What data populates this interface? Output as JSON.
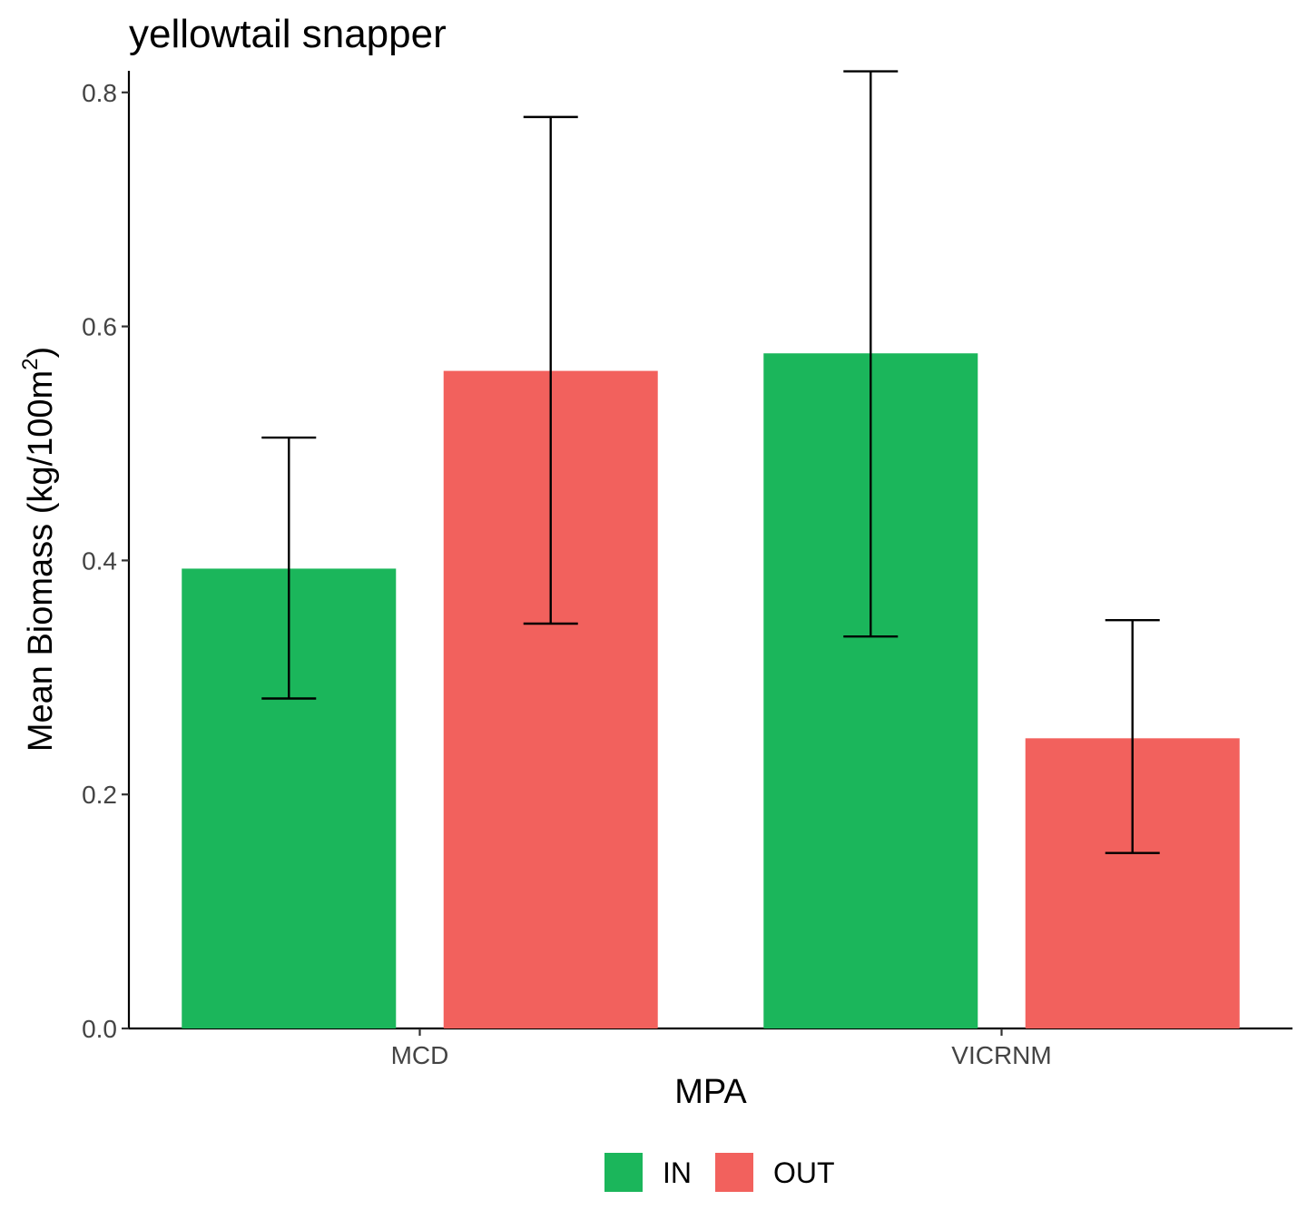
{
  "chart_data": {
    "type": "bar",
    "title": "yellowtail snapper",
    "xlabel": "MPA",
    "ylabel_main": "Mean Biomass (kg/100m",
    "ylabel_sup": "2",
    "ylabel_end": ")",
    "categories": [
      "MCD",
      "VICRNM"
    ],
    "series": [
      {
        "name": "IN",
        "color": "#1BB65B",
        "values": [
          0.393,
          0.577
        ],
        "error_low": [
          0.282,
          0.335
        ],
        "error_high": [
          0.505,
          0.818
        ]
      },
      {
        "name": "OUT",
        "color": "#F2615D",
        "values": [
          0.562,
          0.248
        ],
        "error_low": [
          0.346,
          0.15
        ],
        "error_high": [
          0.779,
          0.349
        ]
      }
    ],
    "yticks": [
      "0.0",
      "0.2",
      "0.4",
      "0.6",
      "0.8"
    ],
    "ylim": [
      0,
      0.82
    ],
    "grid": false,
    "legend_position": "bottom"
  }
}
